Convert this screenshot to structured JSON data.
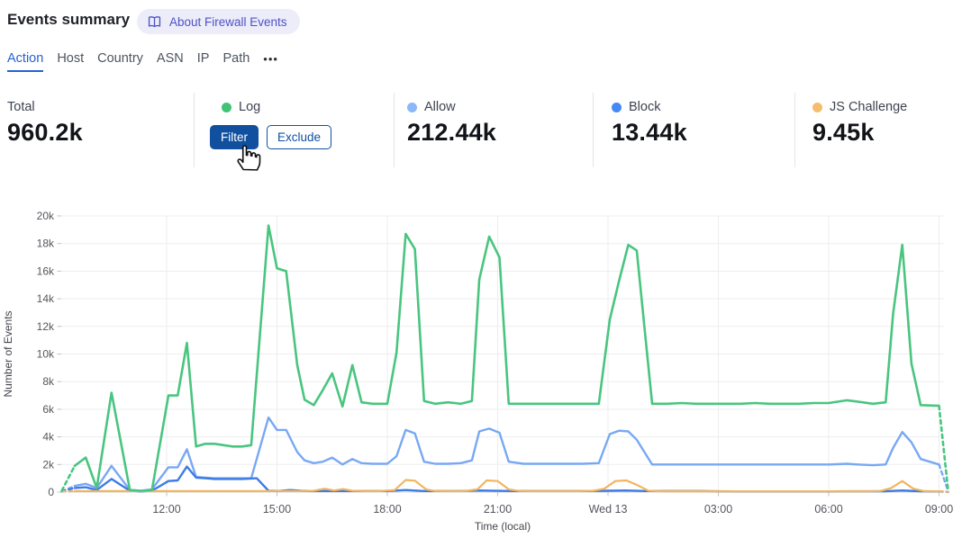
{
  "header": {
    "title": "Events summary",
    "about_badge": "About Firewall Events"
  },
  "tabs": {
    "items": [
      {
        "label": "Action",
        "active": true
      },
      {
        "label": "Host",
        "active": false
      },
      {
        "label": "Country",
        "active": false
      },
      {
        "label": "ASN",
        "active": false
      },
      {
        "label": "IP",
        "active": false
      },
      {
        "label": "Path",
        "active": false
      },
      {
        "label": "•••",
        "active": false
      }
    ]
  },
  "stats": {
    "total": {
      "label": "Total",
      "value": "960.2k"
    },
    "cards": [
      {
        "label": "Log",
        "color": "#3fc374",
        "hovered": true,
        "filter_label": "Filter",
        "exclude_label": "Exclude"
      },
      {
        "label": "Allow",
        "color": "#8cb7f8",
        "value": "212.44k"
      },
      {
        "label": "Block",
        "color": "#4489f4",
        "value": "13.44k"
      },
      {
        "label": "JS Challenge",
        "color": "#f4bd70",
        "value": "9.45k"
      }
    ]
  },
  "chart_data": {
    "type": "line",
    "xlabel": "Time (local)",
    "ylabel": "Number of Events",
    "x_unit": "hours since 00:00 of first day (local); 24 = start of Wed 13",
    "ylim": [
      0,
      20000
    ],
    "ytick_step": 2000,
    "grid": true,
    "edge_segments_dashed": true,
    "xticks": [
      {
        "hour": 12,
        "label": "12:00"
      },
      {
        "hour": 15,
        "label": "15:00"
      },
      {
        "hour": 18,
        "label": "18:00"
      },
      {
        "hour": 21,
        "label": "21:00"
      },
      {
        "hour": 24,
        "label": "Wed 13"
      },
      {
        "hour": 27,
        "label": "03:00"
      },
      {
        "hour": 30,
        "label": "06:00"
      },
      {
        "hour": 33,
        "label": "09:00"
      }
    ],
    "series": [
      {
        "name": "Allow",
        "color": "#78a8f3",
        "width": 2.4,
        "points": [
          [
            9.15,
            50
          ],
          [
            9.5,
            450
          ],
          [
            9.8,
            600
          ],
          [
            10.1,
            300
          ],
          [
            10.5,
            1900
          ],
          [
            11,
            150
          ],
          [
            11.3,
            100
          ],
          [
            11.6,
            200
          ],
          [
            12.05,
            1800
          ],
          [
            12.3,
            1800
          ],
          [
            12.55,
            3100
          ],
          [
            12.8,
            1100
          ],
          [
            13.05,
            1050
          ],
          [
            13.3,
            1000
          ],
          [
            13.55,
            1000
          ],
          [
            13.8,
            1000
          ],
          [
            14.05,
            1000
          ],
          [
            14.3,
            1000
          ],
          [
            14.77,
            5400
          ],
          [
            15,
            4500
          ],
          [
            15.25,
            4500
          ],
          [
            15.55,
            2900
          ],
          [
            15.75,
            2300
          ],
          [
            16,
            2100
          ],
          [
            16.25,
            2200
          ],
          [
            16.5,
            2500
          ],
          [
            16.78,
            2000
          ],
          [
            17.05,
            2400
          ],
          [
            17.3,
            2100
          ],
          [
            17.6,
            2050
          ],
          [
            18,
            2050
          ],
          [
            18.25,
            2600
          ],
          [
            18.5,
            4500
          ],
          [
            18.75,
            4250
          ],
          [
            19,
            2200
          ],
          [
            19.3,
            2050
          ],
          [
            19.65,
            2050
          ],
          [
            20,
            2100
          ],
          [
            20.3,
            2300
          ],
          [
            20.5,
            4400
          ],
          [
            20.77,
            4600
          ],
          [
            21.05,
            4300
          ],
          [
            21.3,
            2200
          ],
          [
            21.7,
            2050
          ],
          [
            22.1,
            2050
          ],
          [
            22.5,
            2050
          ],
          [
            22.9,
            2050
          ],
          [
            23.3,
            2050
          ],
          [
            23.75,
            2100
          ],
          [
            24.05,
            4200
          ],
          [
            24.3,
            4450
          ],
          [
            24.55,
            4400
          ],
          [
            24.78,
            3800
          ],
          [
            25.2,
            2000
          ],
          [
            25.6,
            2000
          ],
          [
            26,
            2000
          ],
          [
            26.4,
            2000
          ],
          [
            26.8,
            2000
          ],
          [
            27.2,
            2000
          ],
          [
            27.6,
            2000
          ],
          [
            28,
            2000
          ],
          [
            28.4,
            2000
          ],
          [
            28.8,
            2000
          ],
          [
            29.2,
            2000
          ],
          [
            29.6,
            2000
          ],
          [
            30,
            2000
          ],
          [
            30.5,
            2050
          ],
          [
            30.8,
            2000
          ],
          [
            31.2,
            1950
          ],
          [
            31.55,
            2000
          ],
          [
            31.75,
            3200
          ],
          [
            32,
            4350
          ],
          [
            32.25,
            3600
          ],
          [
            32.5,
            2400
          ],
          [
            33,
            2000
          ],
          [
            33.25,
            50
          ]
        ]
      },
      {
        "name": "Block",
        "color": "#3d7be5",
        "width": 2.4,
        "points": [
          [
            9.15,
            50
          ],
          [
            9.5,
            300
          ],
          [
            9.8,
            350
          ],
          [
            10.1,
            150
          ],
          [
            10.5,
            950
          ],
          [
            11,
            100
          ],
          [
            11.3,
            50
          ],
          [
            11.6,
            100
          ],
          [
            12.05,
            800
          ],
          [
            12.3,
            850
          ],
          [
            12.55,
            1850
          ],
          [
            12.8,
            1050
          ],
          [
            13.05,
            1000
          ],
          [
            13.3,
            950
          ],
          [
            13.55,
            950
          ],
          [
            13.8,
            950
          ],
          [
            14.05,
            950
          ],
          [
            14.45,
            1000
          ],
          [
            14.77,
            100
          ],
          [
            15.05,
            80
          ],
          [
            15.35,
            150
          ],
          [
            15.65,
            100
          ],
          [
            16,
            80
          ],
          [
            16.5,
            80
          ],
          [
            17,
            80
          ],
          [
            17.5,
            80
          ],
          [
            18,
            80
          ],
          [
            18.5,
            150
          ],
          [
            19,
            80
          ],
          [
            19.5,
            80
          ],
          [
            20,
            80
          ],
          [
            20.5,
            120
          ],
          [
            21,
            90
          ],
          [
            21.5,
            80
          ],
          [
            22,
            80
          ],
          [
            22.5,
            80
          ],
          [
            23,
            80
          ],
          [
            23.5,
            80
          ],
          [
            24,
            100
          ],
          [
            24.5,
            120
          ],
          [
            25,
            80
          ],
          [
            25.5,
            80
          ],
          [
            26,
            80
          ],
          [
            26.5,
            80
          ],
          [
            27,
            60
          ],
          [
            27.5,
            50
          ],
          [
            28,
            50
          ],
          [
            28.5,
            50
          ],
          [
            29,
            50
          ],
          [
            29.5,
            50
          ],
          [
            30,
            50
          ],
          [
            30.5,
            60
          ],
          [
            31,
            60
          ],
          [
            31.5,
            60
          ],
          [
            32,
            120
          ],
          [
            32.5,
            60
          ],
          [
            33,
            50
          ],
          [
            33.25,
            20
          ]
        ]
      },
      {
        "name": "JS Challenge",
        "color": "#f2b55f",
        "width": 2.2,
        "points": [
          [
            9.15,
            60
          ],
          [
            9.5,
            70
          ],
          [
            10,
            70
          ],
          [
            10.5,
            70
          ],
          [
            11,
            70
          ],
          [
            11.5,
            70
          ],
          [
            12,
            70
          ],
          [
            12.5,
            70
          ],
          [
            13,
            70
          ],
          [
            13.5,
            70
          ],
          [
            14,
            70
          ],
          [
            14.5,
            70
          ],
          [
            15,
            80
          ],
          [
            15.5,
            80
          ],
          [
            16,
            100
          ],
          [
            16.3,
            250
          ],
          [
            16.55,
            120
          ],
          [
            16.8,
            220
          ],
          [
            17.05,
            100
          ],
          [
            17.4,
            70
          ],
          [
            17.8,
            70
          ],
          [
            18.2,
            150
          ],
          [
            18.5,
            880
          ],
          [
            18.75,
            830
          ],
          [
            19.05,
            200
          ],
          [
            19.3,
            80
          ],
          [
            19.7,
            70
          ],
          [
            20.1,
            70
          ],
          [
            20.45,
            200
          ],
          [
            20.7,
            850
          ],
          [
            21,
            800
          ],
          [
            21.3,
            200
          ],
          [
            21.6,
            80
          ],
          [
            22,
            70
          ],
          [
            22.4,
            70
          ],
          [
            22.8,
            70
          ],
          [
            23.2,
            70
          ],
          [
            23.6,
            100
          ],
          [
            23.9,
            250
          ],
          [
            24.2,
            800
          ],
          [
            24.5,
            850
          ],
          [
            24.8,
            500
          ],
          [
            25.1,
            100
          ],
          [
            25.5,
            60
          ],
          [
            26,
            60
          ],
          [
            26.5,
            60
          ],
          [
            27,
            60
          ],
          [
            27.5,
            60
          ],
          [
            28,
            60
          ],
          [
            28.5,
            60
          ],
          [
            29,
            60
          ],
          [
            29.5,
            60
          ],
          [
            30,
            60
          ],
          [
            30.5,
            60
          ],
          [
            31,
            60
          ],
          [
            31.4,
            80
          ],
          [
            31.7,
            300
          ],
          [
            32,
            800
          ],
          [
            32.3,
            250
          ],
          [
            32.6,
            70
          ],
          [
            33,
            60
          ],
          [
            33.25,
            30
          ]
        ]
      },
      {
        "name": "Log",
        "color": "#49c57f",
        "width": 2.6,
        "points": [
          [
            9.15,
            100
          ],
          [
            9.5,
            1900
          ],
          [
            9.8,
            2500
          ],
          [
            10.1,
            300
          ],
          [
            10.5,
            7200
          ],
          [
            11,
            150
          ],
          [
            11.3,
            100
          ],
          [
            11.6,
            150
          ],
          [
            12.05,
            7000
          ],
          [
            12.3,
            7000
          ],
          [
            12.55,
            10800
          ],
          [
            12.8,
            3300
          ],
          [
            13.05,
            3500
          ],
          [
            13.3,
            3500
          ],
          [
            13.55,
            3400
          ],
          [
            13.8,
            3300
          ],
          [
            14.05,
            3300
          ],
          [
            14.3,
            3400
          ],
          [
            14.77,
            19300
          ],
          [
            15,
            16200
          ],
          [
            15.25,
            16000
          ],
          [
            15.55,
            9200
          ],
          [
            15.75,
            6700
          ],
          [
            16,
            6300
          ],
          [
            16.25,
            7400
          ],
          [
            16.5,
            8600
          ],
          [
            16.78,
            6200
          ],
          [
            17.05,
            9200
          ],
          [
            17.3,
            6500
          ],
          [
            17.6,
            6400
          ],
          [
            18,
            6400
          ],
          [
            18.25,
            10100
          ],
          [
            18.5,
            18700
          ],
          [
            18.75,
            17600
          ],
          [
            19,
            6600
          ],
          [
            19.3,
            6400
          ],
          [
            19.65,
            6500
          ],
          [
            20,
            6400
          ],
          [
            20.3,
            6600
          ],
          [
            20.5,
            15400
          ],
          [
            20.77,
            18500
          ],
          [
            21.05,
            17000
          ],
          [
            21.3,
            6400
          ],
          [
            21.7,
            6400
          ],
          [
            22.1,
            6400
          ],
          [
            22.5,
            6400
          ],
          [
            22.9,
            6400
          ],
          [
            23.3,
            6400
          ],
          [
            23.75,
            6400
          ],
          [
            24.05,
            12500
          ],
          [
            24.3,
            15300
          ],
          [
            24.55,
            17900
          ],
          [
            24.78,
            17500
          ],
          [
            25.2,
            6400
          ],
          [
            25.6,
            6400
          ],
          [
            26,
            6450
          ],
          [
            26.4,
            6400
          ],
          [
            26.8,
            6400
          ],
          [
            27.2,
            6400
          ],
          [
            27.6,
            6400
          ],
          [
            28,
            6450
          ],
          [
            28.4,
            6400
          ],
          [
            28.8,
            6400
          ],
          [
            29.2,
            6400
          ],
          [
            29.6,
            6450
          ],
          [
            30,
            6450
          ],
          [
            30.5,
            6650
          ],
          [
            30.8,
            6550
          ],
          [
            31.2,
            6400
          ],
          [
            31.55,
            6500
          ],
          [
            31.75,
            12900
          ],
          [
            32,
            17900
          ],
          [
            32.25,
            9300
          ],
          [
            32.5,
            6300
          ],
          [
            33,
            6250
          ],
          [
            33.25,
            50
          ]
        ]
      }
    ]
  }
}
